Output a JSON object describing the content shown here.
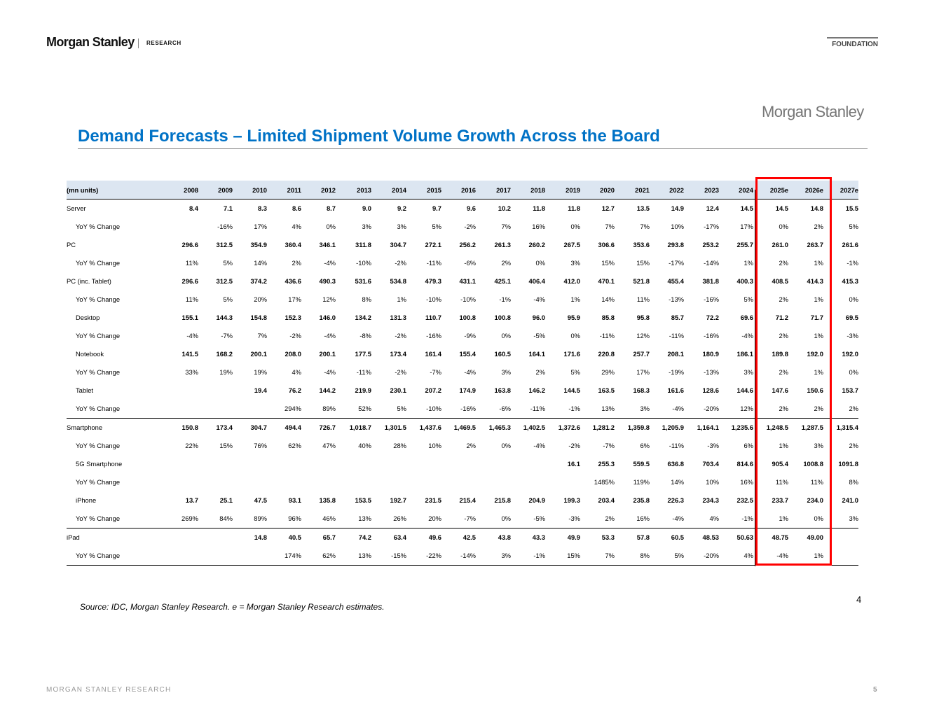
{
  "header": {
    "brand": "Morgan Stanley",
    "division": "RESEARCH",
    "tag": "FOUNDATION"
  },
  "slide": {
    "logo": "Morgan Stanley",
    "title": "Demand Forecasts – Limited Shipment Volume Growth Across the Board",
    "source": "Source: IDC, Morgan Stanley Research. e = Morgan Stanley Research estimates.",
    "page_number": "4",
    "highlight_color": "#ff0000",
    "title_color": "#0072c6"
  },
  "footer": {
    "left": "MORGAN STANLEY RESEARCH",
    "page": "5"
  },
  "table": {
    "unit_header": "(mn units)",
    "years": [
      "2008",
      "2009",
      "2010",
      "2011",
      "2012",
      "2013",
      "2014",
      "2015",
      "2016",
      "2017",
      "2018",
      "2019",
      "2020",
      "2021",
      "2022",
      "2023",
      "2024",
      "2025e",
      "2026e",
      "2027e"
    ],
    "highlighted_years": [
      "2025e",
      "2026e"
    ],
    "rows": [
      {
        "label": "Server",
        "values": [
          "8.4",
          "7.1",
          "8.3",
          "8.6",
          "8.7",
          "9.0",
          "9.2",
          "9.7",
          "9.6",
          "10.2",
          "11.8",
          "11.8",
          "12.7",
          "13.5",
          "14.9",
          "12.4",
          "14.5",
          "14.5",
          "14.8",
          "15.5"
        ]
      },
      {
        "label": "YoY % Change",
        "values": [
          "",
          "-16%",
          "17%",
          "4%",
          "0%",
          "3%",
          "3%",
          "5%",
          "-2%",
          "7%",
          "16%",
          "0%",
          "7%",
          "7%",
          "10%",
          "-17%",
          "17%",
          "0%",
          "2%",
          "5%"
        ]
      },
      {
        "label": "PC",
        "values": [
          "296.6",
          "312.5",
          "354.9",
          "360.4",
          "346.1",
          "311.8",
          "304.7",
          "272.1",
          "256.2",
          "261.3",
          "260.2",
          "267.5",
          "306.6",
          "353.6",
          "293.8",
          "253.2",
          "255.7",
          "261.0",
          "263.7",
          "261.6"
        ]
      },
      {
        "label": "YoY % Change",
        "values": [
          "11%",
          "5%",
          "14%",
          "2%",
          "-4%",
          "-10%",
          "-2%",
          "-11%",
          "-6%",
          "2%",
          "0%",
          "3%",
          "15%",
          "15%",
          "-17%",
          "-14%",
          "1%",
          "2%",
          "1%",
          "-1%"
        ]
      },
      {
        "label": "PC (inc. Tablet)",
        "values": [
          "296.6",
          "312.5",
          "374.2",
          "436.6",
          "490.3",
          "531.6",
          "534.8",
          "479.3",
          "431.1",
          "425.1",
          "406.4",
          "412.0",
          "470.1",
          "521.8",
          "455.4",
          "381.8",
          "400.3",
          "408.5",
          "414.3",
          "415.3"
        ]
      },
      {
        "label": "YoY % Change",
        "values": [
          "11%",
          "5%",
          "20%",
          "17%",
          "12%",
          "8%",
          "1%",
          "-10%",
          "-10%",
          "-1%",
          "-4%",
          "1%",
          "14%",
          "11%",
          "-13%",
          "-16%",
          "5%",
          "2%",
          "1%",
          "0%"
        ]
      },
      {
        "label": "Desktop",
        "values": [
          "155.1",
          "144.3",
          "154.8",
          "152.3",
          "146.0",
          "134.2",
          "131.3",
          "110.7",
          "100.8",
          "100.8",
          "96.0",
          "95.9",
          "85.8",
          "95.8",
          "85.7",
          "72.2",
          "69.6",
          "71.2",
          "71.7",
          "69.5"
        ]
      },
      {
        "label": "YoY % Change",
        "values": [
          "-4%",
          "-7%",
          "7%",
          "-2%",
          "-4%",
          "-8%",
          "-2%",
          "-16%",
          "-9%",
          "0%",
          "-5%",
          "0%",
          "-11%",
          "12%",
          "-11%",
          "-16%",
          "-4%",
          "2%",
          "1%",
          "-3%"
        ]
      },
      {
        "label": "Notebook",
        "values": [
          "141.5",
          "168.2",
          "200.1",
          "208.0",
          "200.1",
          "177.5",
          "173.4",
          "161.4",
          "155.4",
          "160.5",
          "164.1",
          "171.6",
          "220.8",
          "257.7",
          "208.1",
          "180.9",
          "186.1",
          "189.8",
          "192.0",
          "192.0"
        ]
      },
      {
        "label": "YoY % Change",
        "values": [
          "33%",
          "19%",
          "19%",
          "4%",
          "-4%",
          "-11%",
          "-2%",
          "-7%",
          "-4%",
          "3%",
          "2%",
          "5%",
          "29%",
          "17%",
          "-19%",
          "-13%",
          "3%",
          "2%",
          "1%",
          "0%"
        ]
      },
      {
        "label": "Tablet",
        "values": [
          "",
          "",
          "19.4",
          "76.2",
          "144.2",
          "219.9",
          "230.1",
          "207.2",
          "174.9",
          "163.8",
          "146.2",
          "144.5",
          "163.5",
          "168.3",
          "161.6",
          "128.6",
          "144.6",
          "147.6",
          "150.6",
          "153.7"
        ]
      },
      {
        "label": "YoY % Change",
        "values": [
          "",
          "",
          "",
          "294%",
          "89%",
          "52%",
          "5%",
          "-10%",
          "-16%",
          "-6%",
          "-11%",
          "-1%",
          "13%",
          "3%",
          "-4%",
          "-20%",
          "12%",
          "2%",
          "2%",
          "2%"
        ]
      },
      {
        "label": "Smartphone",
        "values": [
          "150.8",
          "173.4",
          "304.7",
          "494.4",
          "726.7",
          "1,018.7",
          "1,301.5",
          "1,437.6",
          "1,469.5",
          "1,465.3",
          "1,402.5",
          "1,372.6",
          "1,281.2",
          "1,359.8",
          "1,205.9",
          "1,164.1",
          "1,235.6",
          "1,248.5",
          "1,287.5",
          "1,315.4"
        ]
      },
      {
        "label": "YoY % Change",
        "values": [
          "22%",
          "15%",
          "76%",
          "62%",
          "47%",
          "40%",
          "28%",
          "10%",
          "2%",
          "0%",
          "-4%",
          "-2%",
          "-7%",
          "6%",
          "-11%",
          "-3%",
          "6%",
          "1%",
          "3%",
          "2%"
        ]
      },
      {
        "label": "5G Smartphone",
        "values": [
          "",
          "",
          "",
          "",
          "",
          "",
          "",
          "",
          "",
          "",
          "",
          "16.1",
          "255.3",
          "559.5",
          "636.8",
          "703.4",
          "814.6",
          "905.4",
          "1008.8",
          "1091.8"
        ]
      },
      {
        "label": "YoY % Change",
        "values": [
          "",
          "",
          "",
          "",
          "",
          "",
          "",
          "",
          "",
          "",
          "",
          "",
          "1485%",
          "119%",
          "14%",
          "10%",
          "16%",
          "11%",
          "11%",
          "8%"
        ]
      },
      {
        "label": "iPhone",
        "values": [
          "13.7",
          "25.1",
          "47.5",
          "93.1",
          "135.8",
          "153.5",
          "192.7",
          "231.5",
          "215.4",
          "215.8",
          "204.9",
          "199.3",
          "203.4",
          "235.8",
          "226.3",
          "234.3",
          "232.5",
          "233.7",
          "234.0",
          "241.0"
        ]
      },
      {
        "label": "YoY % Change",
        "values": [
          "269%",
          "84%",
          "89%",
          "96%",
          "46%",
          "13%",
          "26%",
          "20%",
          "-7%",
          "0%",
          "-5%",
          "-3%",
          "2%",
          "16%",
          "-4%",
          "4%",
          "-1%",
          "1%",
          "0%",
          "3%"
        ]
      },
      {
        "label": "iPad",
        "values": [
          "",
          "",
          "14.8",
          "40.5",
          "65.7",
          "74.2",
          "63.4",
          "49.6",
          "42.5",
          "43.8",
          "43.3",
          "49.9",
          "53.3",
          "57.8",
          "60.5",
          "48.53",
          "50.63",
          "48.75",
          "49.00",
          ""
        ]
      },
      {
        "label": "YoY % Change",
        "values": [
          "",
          "",
          "",
          "174%",
          "62%",
          "13%",
          "-15%",
          "-22%",
          "-14%",
          "3%",
          "-1%",
          "15%",
          "7%",
          "8%",
          "5%",
          "-20%",
          "4%",
          "-4%",
          "1%",
          ""
        ]
      }
    ]
  }
}
